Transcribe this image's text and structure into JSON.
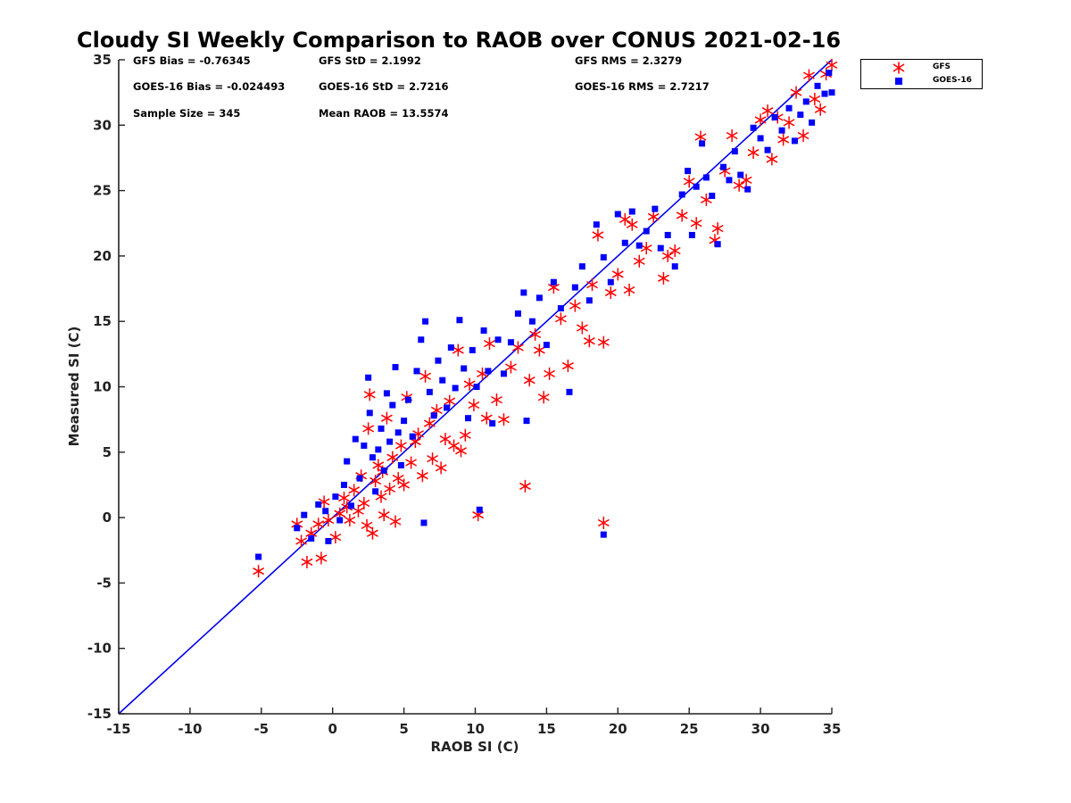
{
  "chart_data": {
    "type": "scatter",
    "title": "Cloudy SI Weekly Comparison to RAOB over CONUS 2021-02-16",
    "xlabel": "RAOB SI (C)",
    "ylabel": "Measured SI (C)",
    "xlim": [
      -15,
      35
    ],
    "ylim": [
      -15,
      35
    ],
    "xticks": [
      "-15",
      "-10",
      "-5",
      "0",
      "5",
      "10",
      "15",
      "20",
      "25",
      "30",
      "35"
    ],
    "yticks": [
      "-15",
      "-10",
      "-5",
      "0",
      "5",
      "10",
      "15",
      "20",
      "25",
      "30",
      "35"
    ],
    "grid": false,
    "legend_position": "outside-top-right",
    "reference_line": {
      "x": [
        -15,
        35
      ],
      "y": [
        -15,
        35
      ],
      "color": "#0000ee"
    },
    "stats": {
      "gfs_bias": "GFS Bias = -0.76345",
      "gfs_std": "GFS StD = 2.1992",
      "gfs_rms": "GFS RMS = 2.3279",
      "goes_bias": "GOES-16 Bias = -0.024493",
      "goes_std": "GOES-16 StD = 2.7216",
      "goes_rms": "GOES-16 RMS = 2.7217",
      "sample_size": "Sample Size = 345",
      "mean_raob": "Mean RAOB = 13.5574"
    },
    "series": [
      {
        "name": "GFS",
        "marker": "asterisk",
        "color": "#ff0000",
        "points": [
          [
            -5.2,
            -4.1
          ],
          [
            -2.5,
            -0.5
          ],
          [
            -2.2,
            -1.8
          ],
          [
            -1.8,
            -3.4
          ],
          [
            -1.5,
            -1.2
          ],
          [
            -1.0,
            -0.5
          ],
          [
            -0.8,
            -3.1
          ],
          [
            -0.6,
            1.2
          ],
          [
            -0.3,
            -0.2
          ],
          [
            0.2,
            -1.5
          ],
          [
            0.5,
            0.3
          ],
          [
            0.8,
            1.5
          ],
          [
            1.0,
            0.8
          ],
          [
            1.2,
            -0.2
          ],
          [
            1.5,
            2.1
          ],
          [
            1.8,
            0.5
          ],
          [
            2.0,
            3.2
          ],
          [
            2.2,
            1.1
          ],
          [
            2.4,
            -0.6
          ],
          [
            2.5,
            6.8
          ],
          [
            2.6,
            9.4
          ],
          [
            2.8,
            -1.2
          ],
          [
            3.0,
            2.8
          ],
          [
            3.2,
            4.0
          ],
          [
            3.4,
            1.6
          ],
          [
            3.5,
            3.5
          ],
          [
            3.6,
            0.2
          ],
          [
            3.8,
            7.6
          ],
          [
            4.0,
            2.2
          ],
          [
            4.2,
            4.6
          ],
          [
            4.4,
            -0.3
          ],
          [
            4.6,
            3.0
          ],
          [
            4.8,
            5.5
          ],
          [
            5.0,
            2.5
          ],
          [
            5.2,
            9.2
          ],
          [
            5.5,
            4.2
          ],
          [
            5.8,
            5.8
          ],
          [
            6.0,
            6.4
          ],
          [
            6.3,
            3.2
          ],
          [
            6.5,
            10.8
          ],
          [
            6.8,
            7.2
          ],
          [
            7.0,
            4.5
          ],
          [
            7.3,
            8.2
          ],
          [
            7.6,
            3.8
          ],
          [
            7.9,
            6.0
          ],
          [
            8.2,
            8.9
          ],
          [
            8.5,
            5.5
          ],
          [
            8.8,
            12.8
          ],
          [
            9.0,
            5.1
          ],
          [
            9.3,
            6.3
          ],
          [
            9.6,
            10.2
          ],
          [
            9.9,
            8.6
          ],
          [
            10.2,
            0.2
          ],
          [
            10.5,
            11.0
          ],
          [
            10.8,
            7.6
          ],
          [
            11.0,
            13.3
          ],
          [
            11.5,
            9.0
          ],
          [
            12.0,
            7.5
          ],
          [
            12.5,
            11.5
          ],
          [
            13.0,
            13.0
          ],
          [
            13.5,
            2.4
          ],
          [
            13.8,
            10.5
          ],
          [
            14.2,
            14.0
          ],
          [
            14.5,
            12.8
          ],
          [
            14.8,
            9.2
          ],
          [
            15.2,
            11.0
          ],
          [
            15.5,
            17.6
          ],
          [
            16.0,
            15.2
          ],
          [
            16.5,
            11.6
          ],
          [
            17.0,
            16.2
          ],
          [
            17.5,
            14.5
          ],
          [
            18.0,
            13.5
          ],
          [
            18.2,
            17.8
          ],
          [
            18.6,
            21.6
          ],
          [
            19.0,
            13.4
          ],
          [
            19.0,
            -0.4
          ],
          [
            19.5,
            17.2
          ],
          [
            20.0,
            18.6
          ],
          [
            20.5,
            22.8
          ],
          [
            20.8,
            17.4
          ],
          [
            21.0,
            22.4
          ],
          [
            21.5,
            19.6
          ],
          [
            22.0,
            20.6
          ],
          [
            22.5,
            23.0
          ],
          [
            23.2,
            18.3
          ],
          [
            23.5,
            20.0
          ],
          [
            24.0,
            20.4
          ],
          [
            24.5,
            23.1
          ],
          [
            25.0,
            25.7
          ],
          [
            25.5,
            22.5
          ],
          [
            25.8,
            29.1
          ],
          [
            26.2,
            24.3
          ],
          [
            26.8,
            21.2
          ],
          [
            27.0,
            22.1
          ],
          [
            27.5,
            26.5
          ],
          [
            28.0,
            29.2
          ],
          [
            28.5,
            25.4
          ],
          [
            29.0,
            25.8
          ],
          [
            29.5,
            27.9
          ],
          [
            30.0,
            30.4
          ],
          [
            30.5,
            31.1
          ],
          [
            30.8,
            27.4
          ],
          [
            31.2,
            30.6
          ],
          [
            31.6,
            28.9
          ],
          [
            32.0,
            30.2
          ],
          [
            32.5,
            32.5
          ],
          [
            33.0,
            29.2
          ],
          [
            33.4,
            33.8
          ],
          [
            33.8,
            32.0
          ],
          [
            34.2,
            31.2
          ],
          [
            34.6,
            33.9
          ],
          [
            35.0,
            34.6
          ]
        ]
      },
      {
        "name": "GOES-16",
        "marker": "square",
        "color": "#0000ff",
        "points": [
          [
            -5.2,
            -3.0
          ],
          [
            -2.5,
            -0.8
          ],
          [
            -2.0,
            0.2
          ],
          [
            -1.5,
            -1.6
          ],
          [
            -1.0,
            1.0
          ],
          [
            -0.5,
            0.5
          ],
          [
            -0.3,
            -1.8
          ],
          [
            0.2,
            1.6
          ],
          [
            0.5,
            -0.2
          ],
          [
            0.8,
            2.5
          ],
          [
            1.0,
            4.3
          ],
          [
            1.3,
            0.9
          ],
          [
            1.6,
            6.0
          ],
          [
            1.9,
            3.0
          ],
          [
            2.2,
            5.5
          ],
          [
            2.5,
            10.7
          ],
          [
            2.6,
            8.0
          ],
          [
            2.8,
            4.6
          ],
          [
            3.0,
            2.0
          ],
          [
            3.2,
            5.2
          ],
          [
            3.4,
            6.8
          ],
          [
            3.6,
            3.6
          ],
          [
            3.8,
            9.5
          ],
          [
            4.0,
            5.8
          ],
          [
            4.2,
            8.6
          ],
          [
            4.4,
            11.5
          ],
          [
            4.6,
            6.5
          ],
          [
            4.8,
            4.0
          ],
          [
            5.0,
            7.4
          ],
          [
            5.3,
            9.0
          ],
          [
            5.6,
            6.2
          ],
          [
            5.9,
            11.2
          ],
          [
            6.2,
            13.6
          ],
          [
            6.4,
            -0.4
          ],
          [
            6.5,
            15.0
          ],
          [
            6.8,
            9.6
          ],
          [
            7.1,
            7.8
          ],
          [
            7.4,
            12.0
          ],
          [
            7.7,
            10.5
          ],
          [
            8.0,
            8.4
          ],
          [
            8.3,
            13.0
          ],
          [
            8.6,
            9.9
          ],
          [
            8.9,
            15.1
          ],
          [
            9.2,
            11.4
          ],
          [
            9.5,
            7.6
          ],
          [
            9.8,
            12.8
          ],
          [
            10.1,
            10.0
          ],
          [
            10.3,
            0.6
          ],
          [
            10.6,
            14.3
          ],
          [
            10.9,
            11.2
          ],
          [
            11.2,
            7.2
          ],
          [
            11.6,
            13.6
          ],
          [
            12.0,
            11.0
          ],
          [
            12.5,
            13.4
          ],
          [
            13.0,
            15.6
          ],
          [
            13.4,
            17.2
          ],
          [
            13.6,
            7.4
          ],
          [
            14.0,
            15.0
          ],
          [
            14.5,
            16.8
          ],
          [
            15.0,
            13.2
          ],
          [
            15.5,
            18.0
          ],
          [
            16.0,
            16.0
          ],
          [
            16.6,
            9.6
          ],
          [
            17.0,
            17.6
          ],
          [
            17.5,
            19.2
          ],
          [
            18.0,
            16.6
          ],
          [
            18.5,
            22.4
          ],
          [
            19.0,
            -1.3
          ],
          [
            19.0,
            19.9
          ],
          [
            19.5,
            18.0
          ],
          [
            20.0,
            23.2
          ],
          [
            20.5,
            21.0
          ],
          [
            21.0,
            23.4
          ],
          [
            21.5,
            20.8
          ],
          [
            22.0,
            21.9
          ],
          [
            22.6,
            23.6
          ],
          [
            23.0,
            20.6
          ],
          [
            23.5,
            21.6
          ],
          [
            24.0,
            19.2
          ],
          [
            24.5,
            24.7
          ],
          [
            24.9,
            26.5
          ],
          [
            25.2,
            21.6
          ],
          [
            25.5,
            25.3
          ],
          [
            25.9,
            28.6
          ],
          [
            26.2,
            26.0
          ],
          [
            26.6,
            24.6
          ],
          [
            27.0,
            20.9
          ],
          [
            27.4,
            26.8
          ],
          [
            27.8,
            25.8
          ],
          [
            28.2,
            28.0
          ],
          [
            28.6,
            26.2
          ],
          [
            29.1,
            25.1
          ],
          [
            29.5,
            29.8
          ],
          [
            30.0,
            29.0
          ],
          [
            30.5,
            28.1
          ],
          [
            31.0,
            30.6
          ],
          [
            31.5,
            29.6
          ],
          [
            32.0,
            31.3
          ],
          [
            32.4,
            28.8
          ],
          [
            32.8,
            30.8
          ],
          [
            33.2,
            31.8
          ],
          [
            33.6,
            30.2
          ],
          [
            34.0,
            33.0
          ],
          [
            34.5,
            32.4
          ],
          [
            34.8,
            34.0
          ],
          [
            35.0,
            32.5
          ]
        ]
      }
    ]
  }
}
